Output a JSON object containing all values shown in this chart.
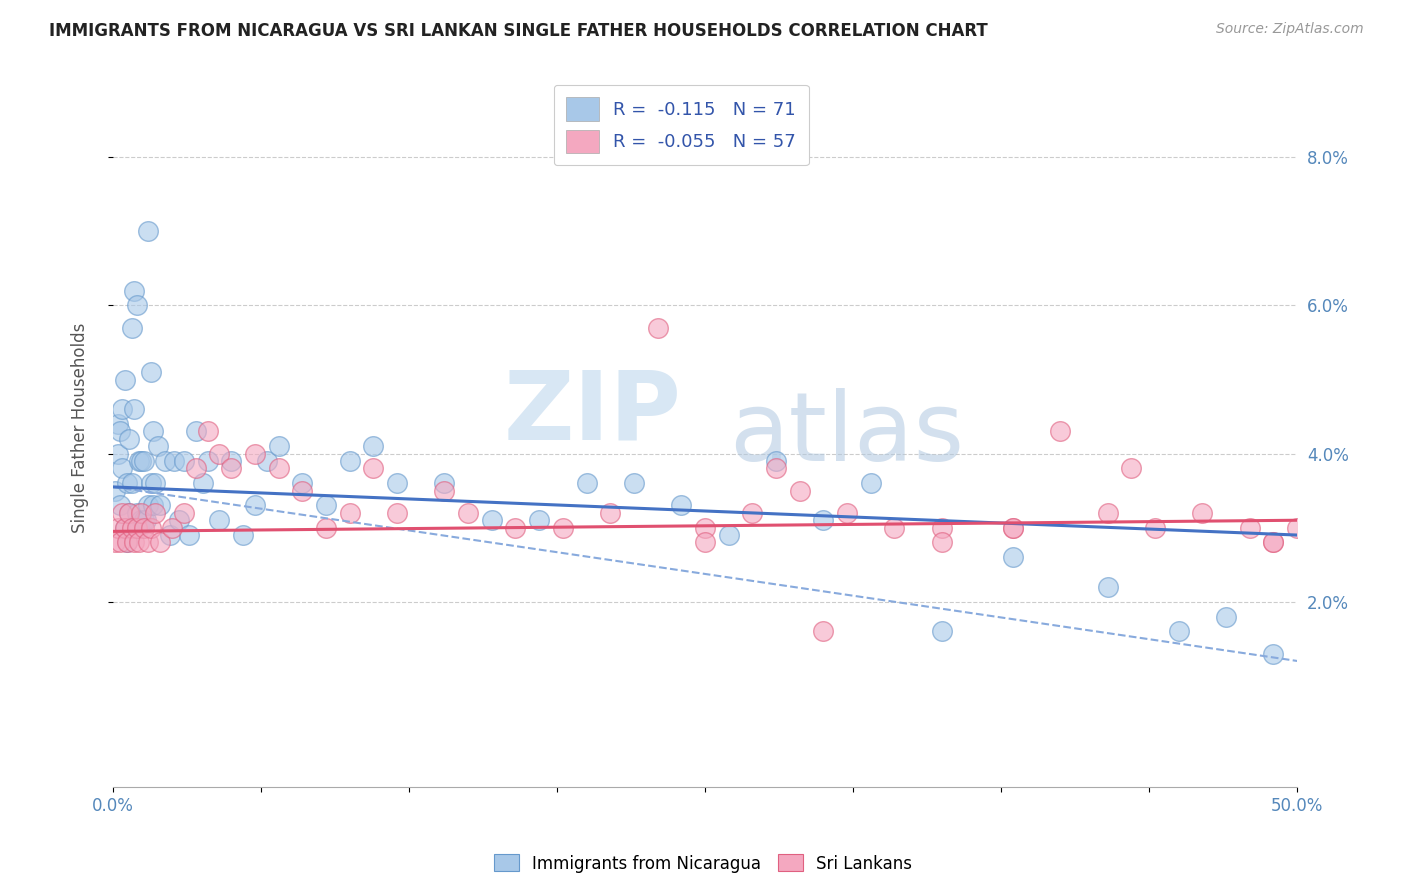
{
  "title": "IMMIGRANTS FROM NICARAGUA VS SRI LANKAN SINGLE FATHER HOUSEHOLDS CORRELATION CHART",
  "source": "Source: ZipAtlas.com",
  "xlabel": "",
  "ylabel": "Single Father Households",
  "xlim": [
    0.0,
    0.5
  ],
  "ylim": [
    -0.005,
    0.092
  ],
  "yticks": [
    0.02,
    0.04,
    0.06,
    0.08
  ],
  "ytick_labels": [
    "2.0%",
    "4.0%",
    "6.0%",
    "8.0%"
  ],
  "xticks": [
    0.0,
    0.0625,
    0.125,
    0.1875,
    0.25,
    0.3125,
    0.375,
    0.4375,
    0.5
  ],
  "xtick_labels": [
    "0.0%",
    "",
    "",
    "",
    "",
    "",
    "",
    "",
    "50.0%"
  ],
  "legend_entries": [
    {
      "label": "R =  -0.115   N = 71",
      "color": "#a8c8e8"
    },
    {
      "label": "R =  -0.055   N = 57",
      "color": "#f4a8c0"
    }
  ],
  "series_blue": {
    "facecolor": "#a8c8e8",
    "edgecolor": "#6699cc",
    "alpha": 0.6,
    "x": [
      0.001,
      0.002,
      0.002,
      0.003,
      0.003,
      0.004,
      0.004,
      0.005,
      0.005,
      0.006,
      0.006,
      0.007,
      0.007,
      0.008,
      0.008,
      0.009,
      0.009,
      0.01,
      0.01,
      0.011,
      0.011,
      0.012,
      0.012,
      0.013,
      0.013,
      0.014,
      0.015,
      0.015,
      0.016,
      0.016,
      0.017,
      0.017,
      0.018,
      0.019,
      0.02,
      0.022,
      0.024,
      0.026,
      0.028,
      0.03,
      0.032,
      0.035,
      0.038,
      0.04,
      0.045,
      0.05,
      0.055,
      0.06,
      0.065,
      0.07,
      0.08,
      0.09,
      0.1,
      0.11,
      0.12,
      0.14,
      0.16,
      0.18,
      0.2,
      0.22,
      0.24,
      0.26,
      0.28,
      0.3,
      0.32,
      0.35,
      0.38,
      0.42,
      0.45,
      0.47,
      0.49
    ],
    "y": [
      0.035,
      0.04,
      0.044,
      0.033,
      0.043,
      0.038,
      0.046,
      0.03,
      0.05,
      0.028,
      0.036,
      0.032,
      0.042,
      0.036,
      0.057,
      0.046,
      0.062,
      0.032,
      0.06,
      0.039,
      0.03,
      0.039,
      0.031,
      0.039,
      0.031,
      0.031,
      0.033,
      0.07,
      0.036,
      0.051,
      0.043,
      0.033,
      0.036,
      0.041,
      0.033,
      0.039,
      0.029,
      0.039,
      0.031,
      0.039,
      0.029,
      0.043,
      0.036,
      0.039,
      0.031,
      0.039,
      0.029,
      0.033,
      0.039,
      0.041,
      0.036,
      0.033,
      0.039,
      0.041,
      0.036,
      0.036,
      0.031,
      0.031,
      0.036,
      0.036,
      0.033,
      0.029,
      0.039,
      0.031,
      0.036,
      0.016,
      0.026,
      0.022,
      0.016,
      0.018,
      0.013
    ]
  },
  "series_pink": {
    "facecolor": "#f4a8c0",
    "edgecolor": "#e06080",
    "alpha": 0.6,
    "x": [
      0.001,
      0.002,
      0.003,
      0.004,
      0.005,
      0.006,
      0.007,
      0.008,
      0.009,
      0.01,
      0.011,
      0.012,
      0.013,
      0.015,
      0.016,
      0.018,
      0.02,
      0.025,
      0.03,
      0.035,
      0.04,
      0.045,
      0.05,
      0.06,
      0.07,
      0.08,
      0.09,
      0.1,
      0.11,
      0.12,
      0.14,
      0.15,
      0.17,
      0.19,
      0.21,
      0.23,
      0.25,
      0.27,
      0.29,
      0.31,
      0.33,
      0.35,
      0.38,
      0.4,
      0.42,
      0.44,
      0.46,
      0.48,
      0.49,
      0.5,
      0.49,
      0.43,
      0.38,
      0.35,
      0.3,
      0.28,
      0.25
    ],
    "y": [
      0.028,
      0.03,
      0.028,
      0.032,
      0.03,
      0.028,
      0.032,
      0.03,
      0.028,
      0.03,
      0.028,
      0.032,
      0.03,
      0.028,
      0.03,
      0.032,
      0.028,
      0.03,
      0.032,
      0.038,
      0.043,
      0.04,
      0.038,
      0.04,
      0.038,
      0.035,
      0.03,
      0.032,
      0.038,
      0.032,
      0.035,
      0.032,
      0.03,
      0.03,
      0.032,
      0.057,
      0.03,
      0.032,
      0.035,
      0.032,
      0.03,
      0.03,
      0.03,
      0.043,
      0.032,
      0.03,
      0.032,
      0.03,
      0.028,
      0.03,
      0.028,
      0.038,
      0.03,
      0.028,
      0.016,
      0.038,
      0.028
    ]
  },
  "trendline_blue_solid": {
    "x_start": 0.0,
    "x_end": 0.5,
    "y_start": 0.0355,
    "y_end": 0.029,
    "color": "#4472C4",
    "linestyle": "-",
    "linewidth": 2.2
  },
  "trendline_blue_dashed": {
    "x_start": 0.0,
    "x_end": 0.5,
    "y_start": 0.0355,
    "y_end": 0.012,
    "color": "#88aadd",
    "linestyle": "--",
    "linewidth": 1.5
  },
  "trendline_pink": {
    "x_start": 0.0,
    "x_end": 0.5,
    "y_start": 0.0295,
    "y_end": 0.031,
    "color": "#e05070",
    "linestyle": "-",
    "linewidth": 2.2
  },
  "watermark_zip": "ZIP",
  "watermark_atlas": "atlas",
  "background_color": "#ffffff",
  "grid_color": "#cccccc",
  "title_color": "#222222",
  "axis_label_color": "#555555",
  "right_axis_color": "#5588bb",
  "right_yticks": [
    0.02,
    0.04,
    0.06,
    0.08
  ],
  "right_ytick_labels": [
    "2.0%",
    "4.0%",
    "6.0%",
    "8.0%"
  ]
}
